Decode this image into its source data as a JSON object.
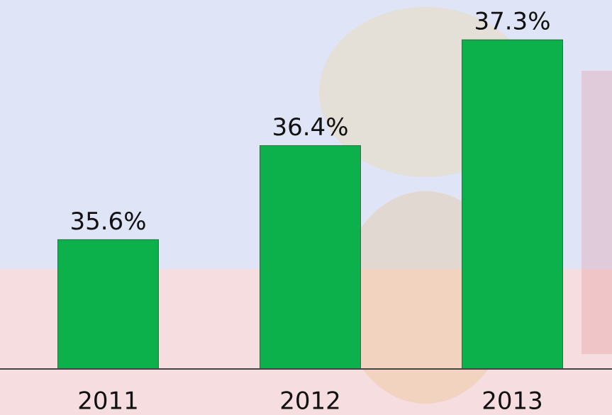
{
  "chart_data": {
    "type": "bar",
    "categories": [
      "2011",
      "2012",
      "2013"
    ],
    "values": [
      35.6,
      36.4,
      37.3
    ],
    "value_labels": [
      "35.6%",
      "36.4%",
      "37.3%"
    ],
    "color": "#0db14b",
    "ylim": [
      34.5,
      37.5
    ]
  }
}
